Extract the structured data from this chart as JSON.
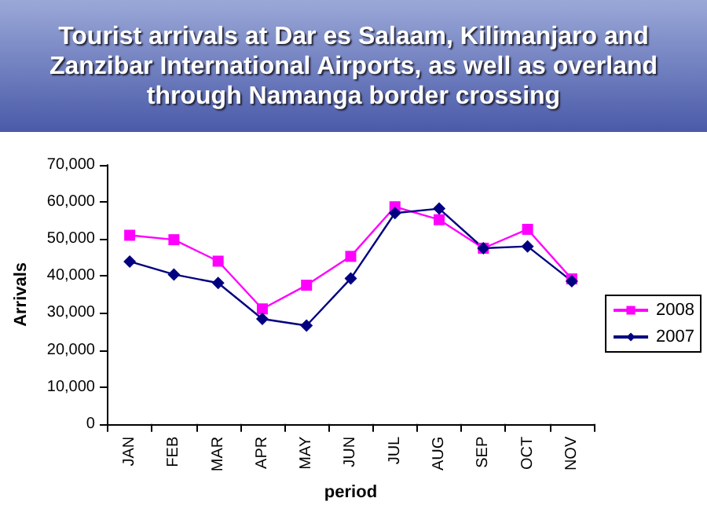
{
  "chart_data": {
    "type": "line",
    "title": "Tourist arrivals at Dar es Salaam, Kilimanjaro and Zanzibar International Airports, as well as overland through Namanga border crossing",
    "xlabel": "period",
    "ylabel": "Arrivals",
    "categories": [
      "JAN",
      "FEB",
      "MAR",
      "APR",
      "MAY",
      "JUN",
      "JUL",
      "AUG",
      "SEP",
      "OCT",
      "NOV"
    ],
    "series": [
      {
        "name": "2008",
        "color": "#ff00ff",
        "marker": "square",
        "values": [
          51000,
          49800,
          44000,
          31100,
          37500,
          45300,
          58700,
          55200,
          47500,
          52600,
          39200
        ]
      },
      {
        "name": "2007",
        "color": "#000080",
        "marker": "diamond",
        "values": [
          43900,
          40400,
          38100,
          28400,
          26600,
          39300,
          57000,
          58200,
          47500,
          48000,
          38600
        ]
      }
    ],
    "ylim": [
      0,
      70000
    ],
    "yticks": [
      0,
      {
        "value": 10000,
        "label": "10,000"
      },
      {
        "value": 20000,
        "label": "20,000"
      },
      {
        "value": 30000,
        "label": "30,000"
      },
      {
        "value": 40000,
        "label": "40,000"
      },
      {
        "value": 50000,
        "label": "50,000"
      },
      {
        "value": 60000,
        "label": "60,000"
      },
      {
        "value": 70000,
        "label": "70,000"
      }
    ],
    "grid": false,
    "legend": "right",
    "line_style": "solid"
  }
}
